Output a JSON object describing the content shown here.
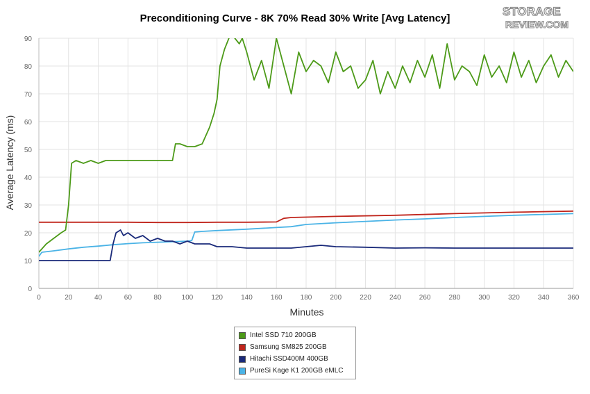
{
  "chart_data": {
    "type": "line",
    "title": "Preconditioning Curve - 8K 70% Read 30% Write [Avg Latency]",
    "xlabel": "Minutes",
    "ylabel": "Average Latency (ms)",
    "xlim": [
      0,
      360
    ],
    "ylim": [
      0,
      90
    ],
    "x_ticks": [
      "0",
      "20",
      "40",
      "60",
      "80",
      "100",
      "120",
      "140",
      "160",
      "180",
      "200",
      "220",
      "240",
      "260",
      "280",
      "300",
      "320",
      "340",
      "360"
    ],
    "y_ticks": [
      "0",
      "10",
      "20",
      "30",
      "40",
      "50",
      "60",
      "70",
      "80",
      "90"
    ],
    "grid": true,
    "legend_position": "bottom",
    "series": [
      {
        "name": "Intel SSD 710 200GB",
        "color": "#4c9a18",
        "x": [
          0,
          5,
          10,
          15,
          18,
          20,
          22,
          25,
          30,
          35,
          40,
          45,
          50,
          55,
          60,
          65,
          70,
          75,
          80,
          85,
          88,
          90,
          92,
          95,
          100,
          105,
          110,
          115,
          118,
          120,
          122,
          125,
          128,
          130,
          132,
          135,
          137,
          140,
          145,
          150,
          155,
          160,
          165,
          170,
          175,
          180,
          185,
          190,
          195,
          200,
          205,
          210,
          215,
          220,
          225,
          230,
          235,
          240,
          245,
          250,
          255,
          260,
          265,
          270,
          275,
          280,
          285,
          290,
          295,
          300,
          305,
          310,
          315,
          320,
          325,
          330,
          335,
          340,
          345,
          350,
          355,
          360
        ],
        "values": [
          13,
          16,
          18,
          20,
          21,
          30,
          45,
          46,
          45,
          46,
          45,
          46,
          46,
          46,
          46,
          46,
          46,
          46,
          46,
          46,
          46,
          46,
          52,
          52,
          51,
          51,
          52,
          58,
          63,
          68,
          80,
          86,
          90,
          92,
          90,
          88,
          90,
          85,
          75,
          82,
          72,
          90,
          80,
          70,
          85,
          78,
          82,
          80,
          74,
          85,
          78,
          80,
          72,
          75,
          82,
          70,
          78,
          72,
          80,
          74,
          82,
          76,
          84,
          72,
          88,
          75,
          80,
          78,
          73,
          84,
          76,
          80,
          74,
          85,
          76,
          82,
          74,
          80,
          84,
          76,
          82,
          78
        ]
      },
      {
        "name": "Samsung SM825 200GB",
        "color": "#c0251c",
        "x": [
          0,
          20,
          40,
          60,
          80,
          100,
          120,
          140,
          160,
          165,
          170,
          200,
          240,
          280,
          320,
          360
        ],
        "values": [
          23.8,
          23.8,
          23.8,
          23.8,
          23.7,
          23.7,
          23.8,
          23.8,
          23.9,
          25.2,
          25.5,
          25.9,
          26.3,
          26.9,
          27.4,
          27.8
        ]
      },
      {
        "name": "Hitachi SSD400M 400GB",
        "color": "#1a2a7a",
        "x": [
          0,
          10,
          20,
          30,
          40,
          48,
          50,
          52,
          55,
          57,
          60,
          65,
          70,
          75,
          80,
          85,
          90,
          95,
          100,
          105,
          110,
          115,
          120,
          125,
          130,
          140,
          150,
          160,
          170,
          180,
          190,
          200,
          220,
          240,
          260,
          280,
          300,
          320,
          340,
          360
        ],
        "values": [
          10,
          10,
          10,
          10,
          10,
          10,
          16,
          20,
          21,
          19,
          20,
          18,
          19,
          17,
          18,
          17,
          17,
          16,
          17,
          16,
          16,
          16,
          15,
          15,
          15,
          14.5,
          14.5,
          14.5,
          14.5,
          15,
          15.5,
          15,
          14.8,
          14.5,
          14.6,
          14.5,
          14.5,
          14.5,
          14.5,
          14.5
        ]
      },
      {
        "name": "PureSi Kage K1 200GB eMLC",
        "color": "#4ab3e6",
        "x": [
          0,
          2,
          10,
          20,
          30,
          40,
          50,
          60,
          70,
          80,
          90,
          100,
          103,
          105,
          110,
          120,
          140,
          160,
          170,
          180,
          200,
          220,
          240,
          260,
          280,
          300,
          320,
          340,
          360
        ],
        "values": [
          11.5,
          13,
          13.5,
          14.2,
          14.8,
          15.2,
          15.7,
          16.1,
          16.4,
          16.6,
          16.8,
          17,
          17.2,
          20.3,
          20.5,
          20.8,
          21.3,
          21.9,
          22.2,
          23,
          23.6,
          24.1,
          24.6,
          25,
          25.5,
          25.9,
          26.3,
          26.6,
          26.9
        ]
      }
    ]
  },
  "legend_items": [
    {
      "label": "Intel SSD 710 200GB"
    },
    {
      "label": "Samsung SM825 200GB"
    },
    {
      "label": "Hitachi SSD400M 400GB"
    },
    {
      "label": "PureSi Kage K1 200GB eMLC"
    }
  ],
  "logo": {
    "line1": "STORAGE",
    "line2": "REVIEW.COM"
  }
}
